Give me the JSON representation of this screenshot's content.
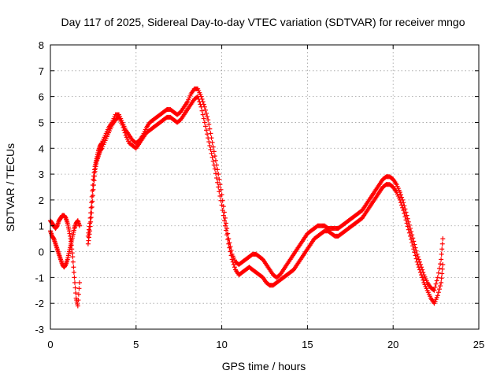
{
  "chart_data": {
    "type": "scatter",
    "title": "Day 117 of 2025, Sidereal Day-to-day VTEC variation (SDTVAR) for receiver mngo",
    "xlabel": "GPS time / hours",
    "ylabel": "SDTVAR / TECUs",
    "xlim": [
      0,
      25
    ],
    "ylim": [
      -3,
      8
    ],
    "xticks": [
      "0",
      "5",
      "10",
      "15",
      "20",
      "25"
    ],
    "yticks": [
      "-3",
      "-2",
      "-1",
      "0",
      "1",
      "2",
      "3",
      "4",
      "5",
      "6",
      "7",
      "8"
    ],
    "grid": true,
    "marker": "+",
    "series": [
      {
        "name": "SDTVAR",
        "color": "#ff0000",
        "x": [
          0.0,
          0.1,
          0.2,
          0.3,
          0.4,
          0.5,
          0.6,
          0.7,
          0.8,
          0.9,
          1.0,
          1.1,
          1.2,
          1.3,
          1.4,
          1.5,
          1.6,
          1.7,
          2.2,
          2.3,
          2.4,
          2.5,
          2.6,
          2.7,
          2.8,
          2.9,
          3.0,
          3.2,
          3.4,
          3.6,
          3.8,
          4.0,
          4.2,
          4.4,
          4.6,
          4.8,
          5.0,
          5.2,
          5.4,
          5.6,
          5.8,
          6.0,
          6.2,
          6.4,
          6.6,
          6.8,
          7.0,
          7.2,
          7.4,
          7.6,
          7.8,
          8.0,
          8.2,
          8.4,
          8.6,
          8.8,
          9.0,
          9.2,
          9.4,
          9.6,
          9.8,
          10.0,
          10.2,
          10.4,
          10.6,
          10.8,
          11.0,
          11.2,
          11.4,
          11.6,
          11.8,
          12.0,
          12.2,
          12.4,
          12.6,
          12.8,
          13.0,
          13.2,
          13.4,
          13.6,
          13.8,
          14.0,
          14.2,
          14.4,
          14.6,
          14.8,
          15.0,
          15.2,
          15.4,
          15.6,
          15.8,
          16.0,
          16.2,
          16.4,
          16.6,
          16.8,
          17.0,
          17.2,
          17.4,
          17.6,
          17.8,
          18.0,
          18.2,
          18.4,
          18.6,
          18.8,
          19.0,
          19.2,
          19.4,
          19.6,
          19.8,
          20.0,
          20.2,
          20.4,
          20.6,
          20.8,
          21.0,
          21.2,
          21.4,
          21.6,
          21.8,
          22.0,
          22.2,
          22.4,
          22.6,
          22.8,
          22.9
        ],
        "y": [
          0.8,
          0.6,
          0.5,
          0.3,
          0.1,
          -0.1,
          -0.3,
          -0.5,
          -0.6,
          -0.5,
          -0.3,
          0.0,
          0.3,
          0.6,
          0.9,
          1.1,
          1.2,
          1.0,
          0.3,
          0.8,
          1.5,
          2.4,
          3.1,
          3.5,
          3.7,
          3.9,
          4.0,
          4.3,
          4.6,
          4.9,
          5.1,
          5.2,
          4.9,
          4.5,
          4.2,
          4.1,
          4.0,
          4.2,
          4.4,
          4.6,
          4.7,
          4.8,
          4.9,
          5.0,
          5.1,
          5.2,
          5.2,
          5.1,
          5.0,
          5.1,
          5.3,
          5.5,
          5.7,
          5.9,
          6.0,
          5.6,
          5.0,
          4.4,
          3.8,
          3.2,
          2.5,
          1.8,
          1.0,
          0.3,
          -0.3,
          -0.7,
          -0.9,
          -0.8,
          -0.7,
          -0.6,
          -0.7,
          -0.8,
          -0.9,
          -1.0,
          -1.2,
          -1.3,
          -1.3,
          -1.2,
          -1.1,
          -1.0,
          -0.9,
          -0.8,
          -0.7,
          -0.5,
          -0.3,
          -0.1,
          0.1,
          0.3,
          0.5,
          0.6,
          0.7,
          0.8,
          0.8,
          0.7,
          0.6,
          0.6,
          0.7,
          0.8,
          0.9,
          1.0,
          1.1,
          1.2,
          1.3,
          1.5,
          1.7,
          1.9,
          2.1,
          2.3,
          2.5,
          2.6,
          2.6,
          2.5,
          2.3,
          2.0,
          1.6,
          1.1,
          0.6,
          0.1,
          -0.4,
          -0.8,
          -1.2,
          -1.5,
          -1.8,
          -2.0,
          -1.7,
          -1.2,
          -0.5
        ],
        "y_alt": [
          1.2,
          1.1,
          1.0,
          0.9,
          1.0,
          1.2,
          1.3,
          1.4,
          1.4,
          1.3,
          1.1,
          0.8,
          0.4,
          -0.2,
          -1.0,
          -1.8,
          -2.1,
          -1.2,
          0.6,
          1.1,
          1.9,
          2.8,
          3.3,
          3.6,
          3.9,
          4.1,
          4.2,
          4.5,
          4.8,
          5.0,
          5.3,
          5.3,
          5.0,
          4.7,
          4.5,
          4.3,
          4.2,
          4.3,
          4.5,
          4.8,
          5.0,
          5.1,
          5.2,
          5.3,
          5.4,
          5.5,
          5.5,
          5.4,
          5.3,
          5.4,
          5.6,
          5.8,
          6.1,
          6.3,
          6.3,
          6.0,
          5.6,
          5.1,
          4.4,
          3.7,
          3.0,
          2.2,
          1.3,
          0.5,
          -0.1,
          -0.4,
          -0.5,
          -0.4,
          -0.3,
          -0.2,
          -0.1,
          -0.1,
          -0.2,
          -0.3,
          -0.5,
          -0.7,
          -0.9,
          -1.0,
          -0.9,
          -0.7,
          -0.5,
          -0.3,
          -0.1,
          0.1,
          0.3,
          0.5,
          0.7,
          0.8,
          0.9,
          1.0,
          1.0,
          1.0,
          0.9,
          0.9,
          0.9,
          0.9,
          1.0,
          1.1,
          1.2,
          1.3,
          1.4,
          1.5,
          1.6,
          1.8,
          2.0,
          2.2,
          2.4,
          2.6,
          2.8,
          2.9,
          2.9,
          2.8,
          2.6,
          2.3,
          1.9,
          1.4,
          0.9,
          0.4,
          -0.1,
          -0.5,
          -0.9,
          -1.2,
          -1.4,
          -1.5,
          -1.0,
          -0.3,
          0.5
        ]
      }
    ]
  }
}
